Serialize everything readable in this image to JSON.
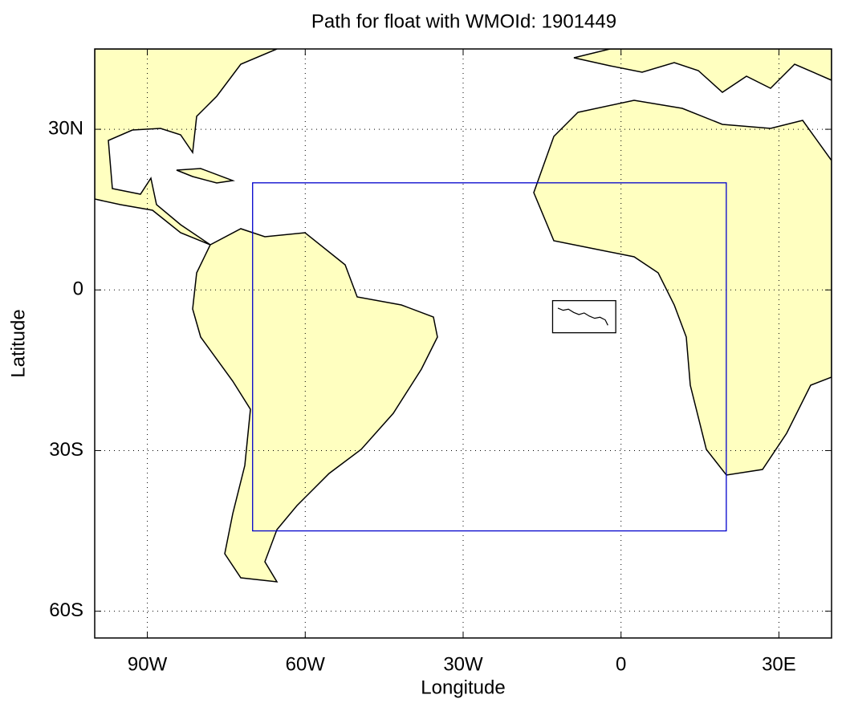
{
  "chart_data": {
    "type": "map",
    "title": "Path for float with WMOId: 1901449",
    "xlabel": "Longitude",
    "ylabel": "Latitude",
    "xlim": [
      -100,
      40
    ],
    "ylim": [
      -65,
      45
    ],
    "xticks": [
      {
        "value": -90,
        "label": "90W"
      },
      {
        "value": -60,
        "label": "60W"
      },
      {
        "value": -30,
        "label": "30W"
      },
      0,
      {
        "value": 30,
        "label": "30E"
      }
    ],
    "yticks": [
      {
        "value": 30,
        "label": "30N"
      },
      0,
      {
        "value": -30,
        "label": "30S"
      },
      {
        "value": -60,
        "label": "60S"
      }
    ],
    "grid": true,
    "land_color": "#ffffc0",
    "region": {
      "color": "#0000cc",
      "lon": [
        -70,
        20
      ],
      "lat": [
        -45,
        20
      ]
    },
    "path_box": {
      "color": "#000000",
      "lon": [
        -13,
        -1
      ],
      "lat": [
        -8,
        -2
      ]
    },
    "path": {
      "color": "#000000",
      "lon": [
        -12,
        -11,
        -10,
        -9,
        -8,
        -7,
        -6,
        -5,
        -4,
        -3,
        -2.5
      ],
      "lat": [
        -3.4,
        -3.8,
        -3.6,
        -4.2,
        -4.6,
        -4.3,
        -4.9,
        -5.3,
        -5.1,
        -5.6,
        -6.6
      ]
    }
  }
}
